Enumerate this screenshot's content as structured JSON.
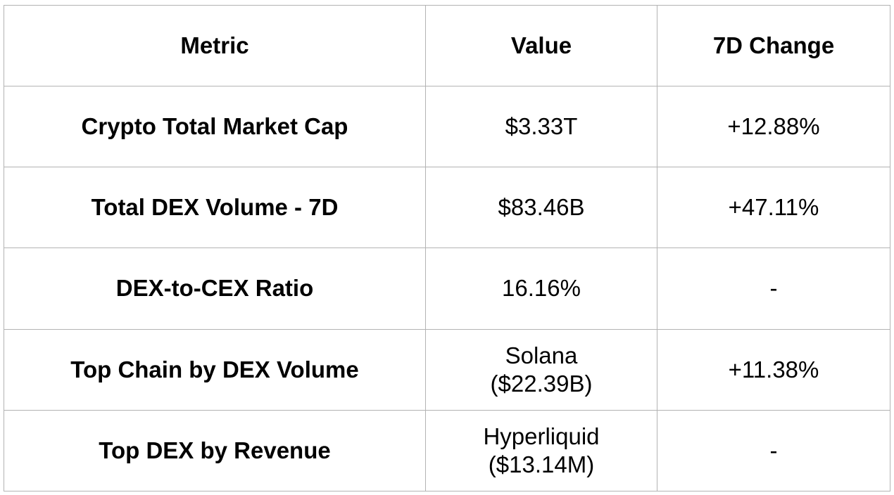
{
  "table": {
    "headers": {
      "metric": "Metric",
      "value": "Value",
      "change": "7D Change"
    },
    "rows": [
      {
        "metric": "Crypto Total Market Cap",
        "value_line1": "$3.33T",
        "value_line2": "",
        "change": "+12.88%"
      },
      {
        "metric": "Total DEX Volume - 7D",
        "value_line1": "$83.46B",
        "value_line2": "",
        "change": "+47.11%"
      },
      {
        "metric": "DEX-to-CEX Ratio",
        "value_line1": "16.16%",
        "value_line2": "",
        "change": "-"
      },
      {
        "metric": "Top Chain by DEX Volume",
        "value_line1": "Solana",
        "value_line2": "($22.39B)",
        "change": "+11.38%"
      },
      {
        "metric": "Top DEX by Revenue",
        "value_line1": "Hyperliquid",
        "value_line2": "($13.14M)",
        "change": "-"
      }
    ]
  },
  "colors": {
    "border": "#b3b3b3",
    "text": "#000000",
    "background": "#ffffff"
  }
}
